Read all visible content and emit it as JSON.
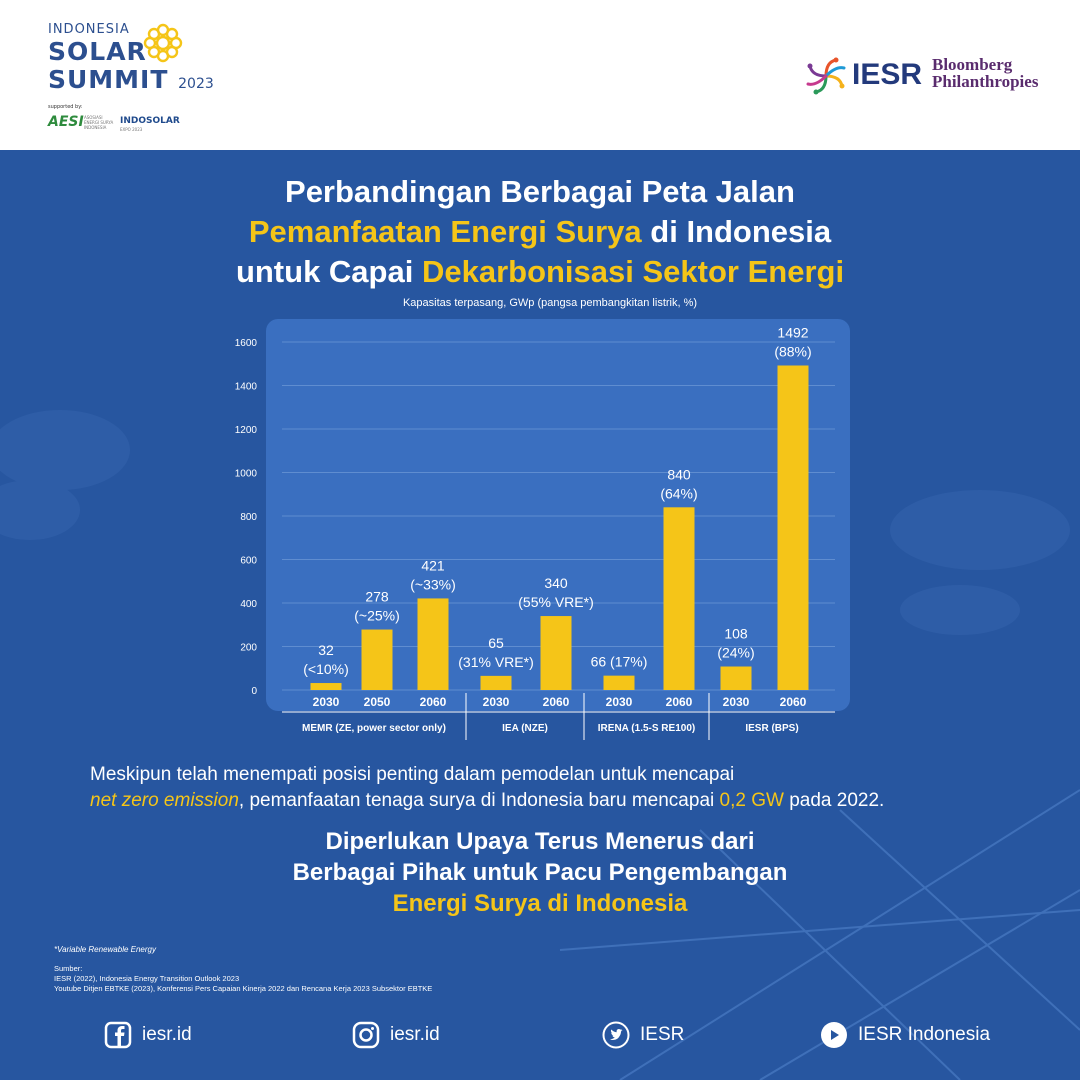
{
  "header": {
    "summit_line1": "INDONESIA",
    "summit_line2": "SOLAR",
    "summit_line3": "SUMMIT",
    "summit_year": "2023",
    "supported_by": "supported by:",
    "aesi": "AESI",
    "aesi_sub": "ASOSIASI ENERGI SURYA INDONESIA",
    "indosolar": "INDOSOLAR",
    "indosolar_sub": "EXPO 2023",
    "iesr": "IESR",
    "bloomberg_line1": "Bloomberg",
    "bloomberg_line2": "Philanthropies"
  },
  "title": {
    "line1": "Perbandingan Berbagai Peta Jalan",
    "line2_highlight": "Pemanfaatan Energi Surya",
    "line2_rest": " di Indonesia",
    "line3_start": "untuk Capai ",
    "line3_highlight": "Dekarbonisasi Sektor Energi"
  },
  "chart_data": {
    "type": "bar",
    "subtitle": "Kapasitas terpasang, GWp (pangsa pembangkitan listrik, %)",
    "ylim": [
      0,
      1600
    ],
    "yticks": [
      0,
      200,
      400,
      600,
      800,
      1000,
      1200,
      1400,
      1600
    ],
    "grid": true,
    "bar_color": "#f5c518",
    "groups": [
      {
        "label": "MEMR (ZE, power sector only)",
        "bars": [
          {
            "year": "2030",
            "value": 32,
            "label_top": "32",
            "label_bottom": "(<10%)"
          },
          {
            "year": "2050",
            "value": 278,
            "label_top": "278",
            "label_bottom": "(~25%)"
          },
          {
            "year": "2060",
            "value": 421,
            "label_top": "421",
            "label_bottom": "(~33%)"
          }
        ]
      },
      {
        "label": "IEA (NZE)",
        "bars": [
          {
            "year": "2030",
            "value": 65,
            "label_top": "65",
            "label_bottom": "(31% VRE*)"
          },
          {
            "year": "2060",
            "value": 340,
            "label_top": "340",
            "label_bottom": "(55% VRE*)"
          }
        ]
      },
      {
        "label": "IRENA (1.5-S RE100)",
        "bars": [
          {
            "year": "2030",
            "value": 66,
            "label_top": "66 (17%)",
            "label_bottom": ""
          },
          {
            "year": "2060",
            "value": 840,
            "label_top": "840",
            "label_bottom": "(64%)"
          }
        ]
      },
      {
        "label": "IESR (BPS)",
        "bars": [
          {
            "year": "2030",
            "value": 108,
            "label_top": "108",
            "label_bottom": "(24%)"
          },
          {
            "year": "2060",
            "value": 1492,
            "label_top": "1492",
            "label_bottom": "(88%)"
          }
        ]
      }
    ]
  },
  "body": {
    "text1": "Meskipun telah menempati posisi penting dalam pemodelan untuk mencapai",
    "text2_italic": "net zero emission",
    "text2_mid": ",  pemanfaatan tenaga surya di Indonesia baru mencapai ",
    "text2_value": "0,2 GW",
    "text2_end": " pada 2022."
  },
  "cta": {
    "line1": "Diperlukan Upaya Terus Menerus dari",
    "line2": "Berbagai Pihak untuk Pacu Pengembangan",
    "line3": "Energi Surya di Indonesia"
  },
  "footnote": "*Variable Renewable Energy",
  "sources": {
    "heading": "Sumber:",
    "items": [
      "IESR (2022), Indonesia Energy Transition Outlook 2023",
      "Youtube Ditjen EBTKE (2023), Konferensi Pers Capaian Kinerja 2022 dan Rencana Kerja 2023 Subsektor EBTKE"
    ]
  },
  "social": {
    "facebook": "iesr.id",
    "instagram": "iesr.id",
    "twitter": "IESR",
    "youtube": "IESR Indonesia"
  }
}
